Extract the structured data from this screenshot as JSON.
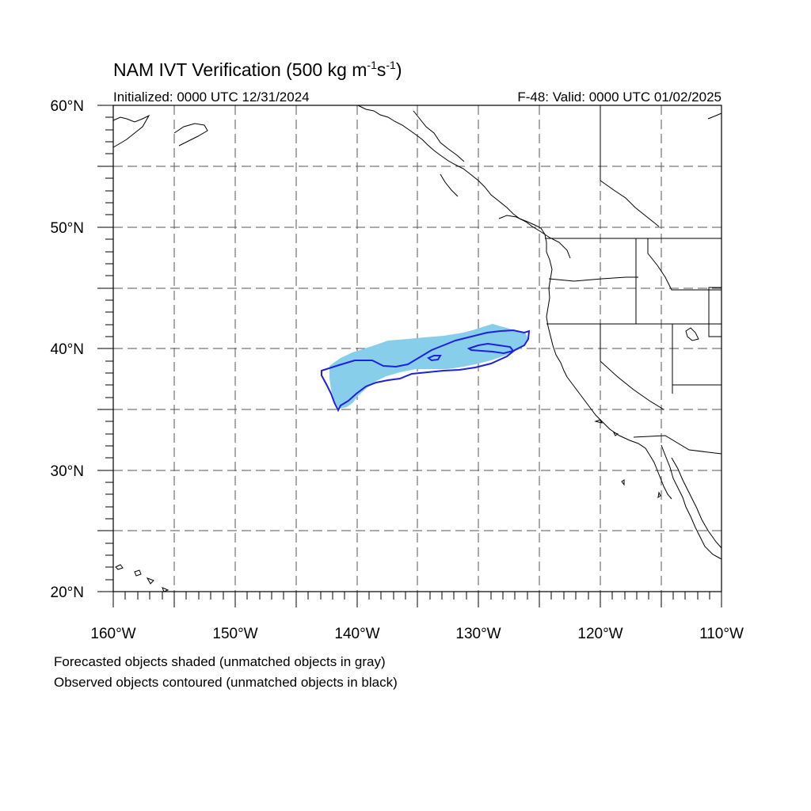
{
  "title": {
    "main": "NAM IVT Verification (500 kg m",
    "sup1": "-1",
    "mid": "s",
    "sup2": "-1",
    "close": ")"
  },
  "initialized": "Initialized: 0000 UTC 12/31/2024",
  "valid": "F-48: Valid: 0000 UTC 01/02/2025",
  "footnotes": [
    "Forecasted objects shaded (unmatched objects in gray)",
    "Observed objects contoured (unmatched objects in black)"
  ],
  "axes": {
    "lat_labels": [
      "60°N",
      "50°N",
      "40°N",
      "30°N",
      "20°N"
    ],
    "lon_labels": [
      "160°W",
      "150°W",
      "140°W",
      "130°W",
      "120°W",
      "110°W"
    ],
    "lat_range": [
      20,
      60
    ],
    "lon_range": [
      -160,
      -110
    ],
    "grid": "dashed, every 5 degrees"
  },
  "colors": {
    "forecast_matched": "#87ceeb",
    "observed_matched": "#1f1fe0",
    "coastline": "#000000",
    "grid": "#555555"
  }
}
